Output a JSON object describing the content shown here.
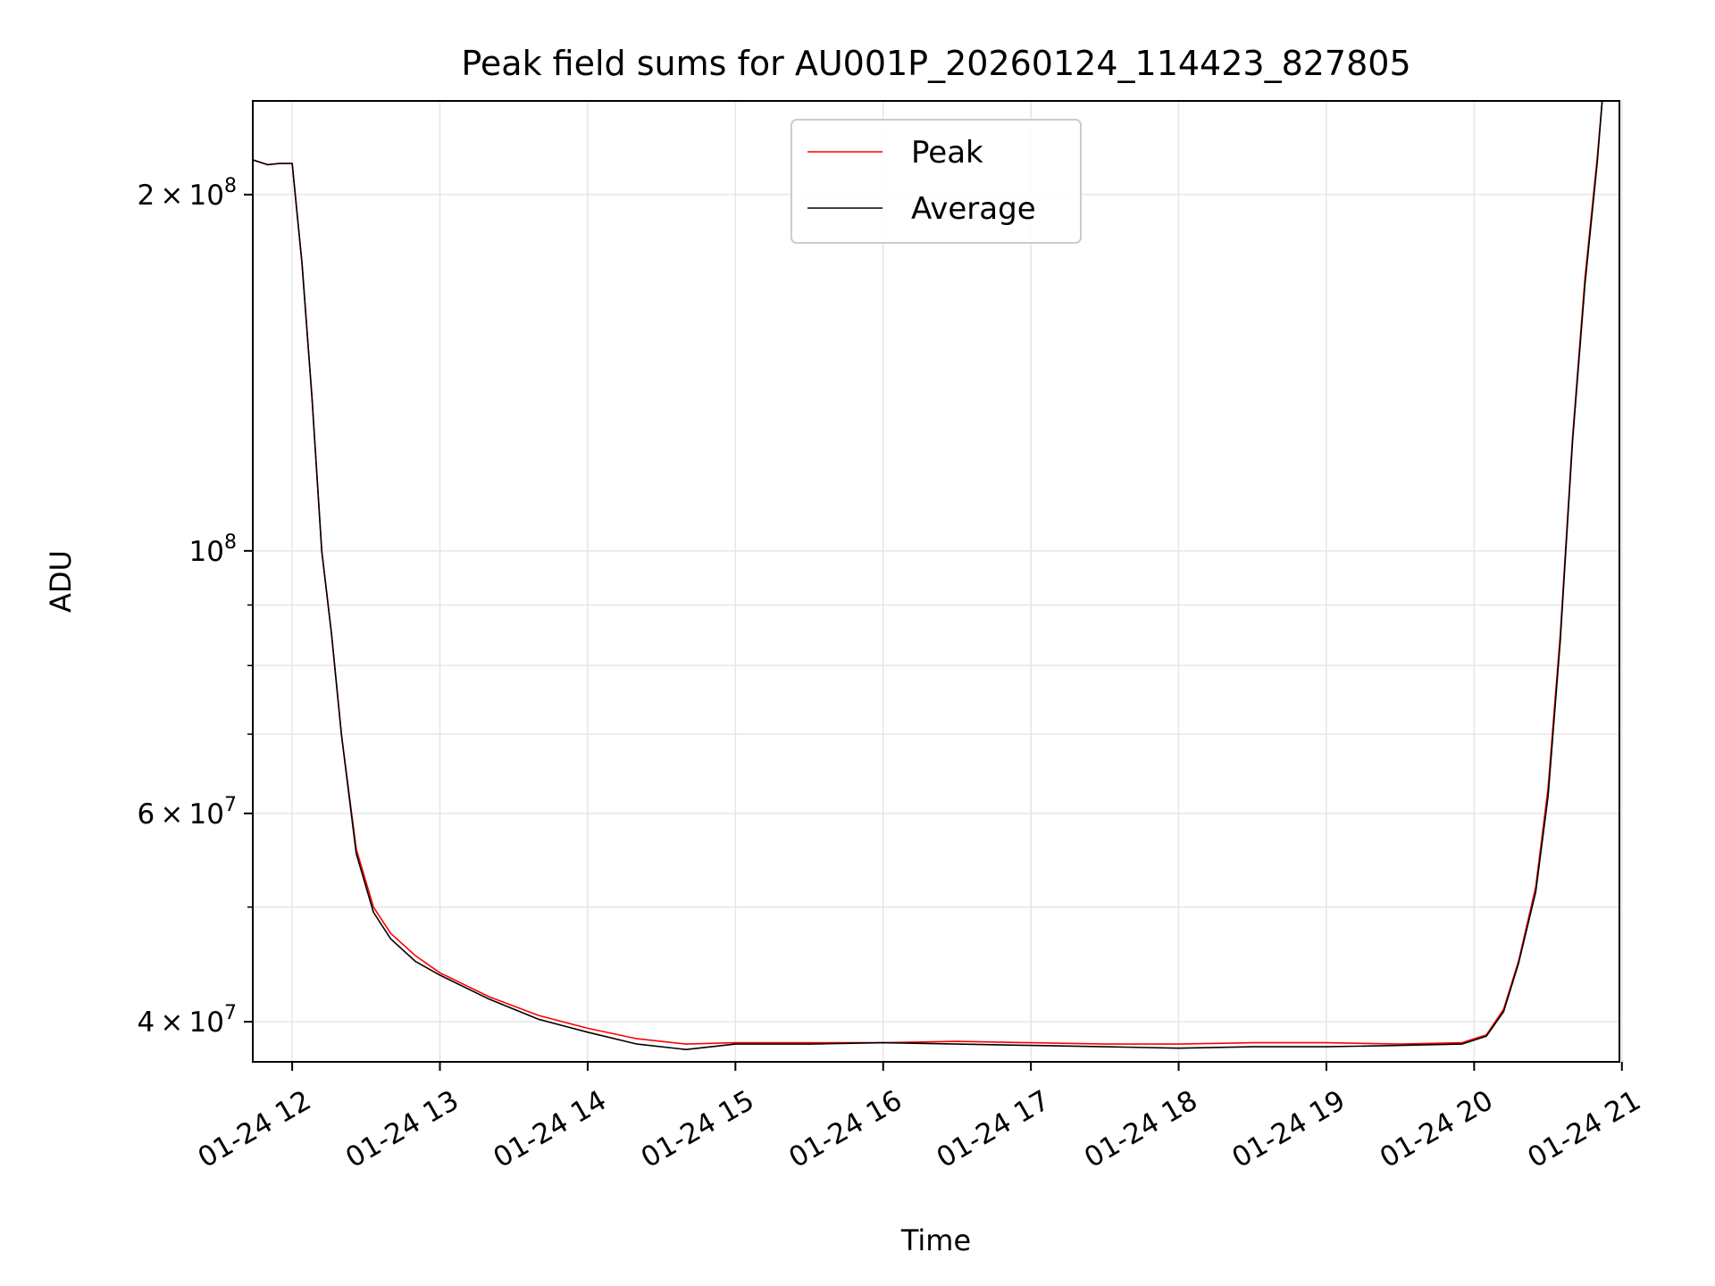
{
  "chart_data": {
    "type": "line",
    "title": "Peak field sums for AU001P_20260124_114423_827805",
    "xlabel": "Time",
    "ylabel": "ADU",
    "yscale": "log",
    "grid": true,
    "legend_position": "top-center",
    "xlim": [
      "2026-01-24 11:44",
      "2026-01-24 20:59"
    ],
    "ylim": [
      37000000,
      240000000
    ],
    "x_ticks": [
      "01-24 12",
      "01-24 13",
      "01-24 14",
      "01-24 15",
      "01-24 16",
      "01-24 17",
      "01-24 18",
      "01-24 19",
      "01-24 20",
      "01-24 21"
    ],
    "y_ticks": [
      {
        "value": 40000000,
        "mant": "4",
        "exp": "7"
      },
      {
        "value": 60000000,
        "mant": "6",
        "exp": "7"
      },
      {
        "value": 100000000,
        "mant": "",
        "exp": "8"
      },
      {
        "value": 200000000,
        "mant": "2",
        "exp": "8"
      }
    ],
    "series": [
      {
        "name": "Peak",
        "color": "#ff0000",
        "x": [
          "2026-01-24 11:44",
          "2026-01-24 11:50",
          "2026-01-24 11:55",
          "2026-01-24 12:00",
          "2026-01-24 12:04",
          "2026-01-24 12:08",
          "2026-01-24 12:12",
          "2026-01-24 12:16",
          "2026-01-24 12:20",
          "2026-01-24 12:26",
          "2026-01-24 12:33",
          "2026-01-24 12:40",
          "2026-01-24 12:50",
          "2026-01-24 13:00",
          "2026-01-24 13:20",
          "2026-01-24 13:40",
          "2026-01-24 14:00",
          "2026-01-24 14:20",
          "2026-01-24 14:40",
          "2026-01-24 15:00",
          "2026-01-24 15:30",
          "2026-01-24 16:00",
          "2026-01-24 16:30",
          "2026-01-24 17:00",
          "2026-01-24 17:30",
          "2026-01-24 18:00",
          "2026-01-24 18:30",
          "2026-01-24 19:00",
          "2026-01-24 19:30",
          "2026-01-24 19:55",
          "2026-01-24 20:05",
          "2026-01-24 20:12",
          "2026-01-24 20:18",
          "2026-01-24 20:25",
          "2026-01-24 20:30",
          "2026-01-24 20:35",
          "2026-01-24 20:40",
          "2026-01-24 20:45",
          "2026-01-24 20:50",
          "2026-01-24 20:52"
        ],
        "y": [
          214000000,
          212000000,
          212500000,
          212500000,
          175000000,
          135000000,
          100000000,
          85000000,
          70000000,
          56000000,
          50000000,
          47500000,
          45500000,
          44000000,
          42000000,
          40500000,
          39500000,
          38700000,
          38300000,
          38400000,
          38400000,
          38400000,
          38500000,
          38400000,
          38300000,
          38300000,
          38400000,
          38400000,
          38300000,
          38400000,
          39000000,
          41000000,
          45000000,
          52000000,
          63000000,
          85000000,
          125000000,
          170000000,
          215000000,
          240000000
        ]
      },
      {
        "name": "Average",
        "color": "#000000",
        "x": [
          "2026-01-24 11:44",
          "2026-01-24 11:50",
          "2026-01-24 11:55",
          "2026-01-24 12:00",
          "2026-01-24 12:04",
          "2026-01-24 12:08",
          "2026-01-24 12:12",
          "2026-01-24 12:16",
          "2026-01-24 12:20",
          "2026-01-24 12:26",
          "2026-01-24 12:33",
          "2026-01-24 12:40",
          "2026-01-24 12:50",
          "2026-01-24 13:00",
          "2026-01-24 13:20",
          "2026-01-24 13:40",
          "2026-01-24 14:00",
          "2026-01-24 14:20",
          "2026-01-24 14:40",
          "2026-01-24 15:00",
          "2026-01-24 15:30",
          "2026-01-24 16:00",
          "2026-01-24 16:30",
          "2026-01-24 17:00",
          "2026-01-24 17:30",
          "2026-01-24 18:00",
          "2026-01-24 18:30",
          "2026-01-24 19:00",
          "2026-01-24 19:30",
          "2026-01-24 19:55",
          "2026-01-24 20:05",
          "2026-01-24 20:12",
          "2026-01-24 20:18",
          "2026-01-24 20:25",
          "2026-01-24 20:30",
          "2026-01-24 20:35",
          "2026-01-24 20:40",
          "2026-01-24 20:45",
          "2026-01-24 20:50",
          "2026-01-24 20:52"
        ],
        "y": [
          214000000,
          212000000,
          212500000,
          212500000,
          175000000,
          135000000,
          100000000,
          85000000,
          70000000,
          55500000,
          49500000,
          47000000,
          45000000,
          43800000,
          41800000,
          40200000,
          39200000,
          38300000,
          37900000,
          38300000,
          38300000,
          38400000,
          38300000,
          38200000,
          38100000,
          38000000,
          38100000,
          38100000,
          38200000,
          38300000,
          38900000,
          40800000,
          44800000,
          51500000,
          62000000,
          84000000,
          124000000,
          168000000,
          213000000,
          240000000
        ]
      }
    ]
  }
}
